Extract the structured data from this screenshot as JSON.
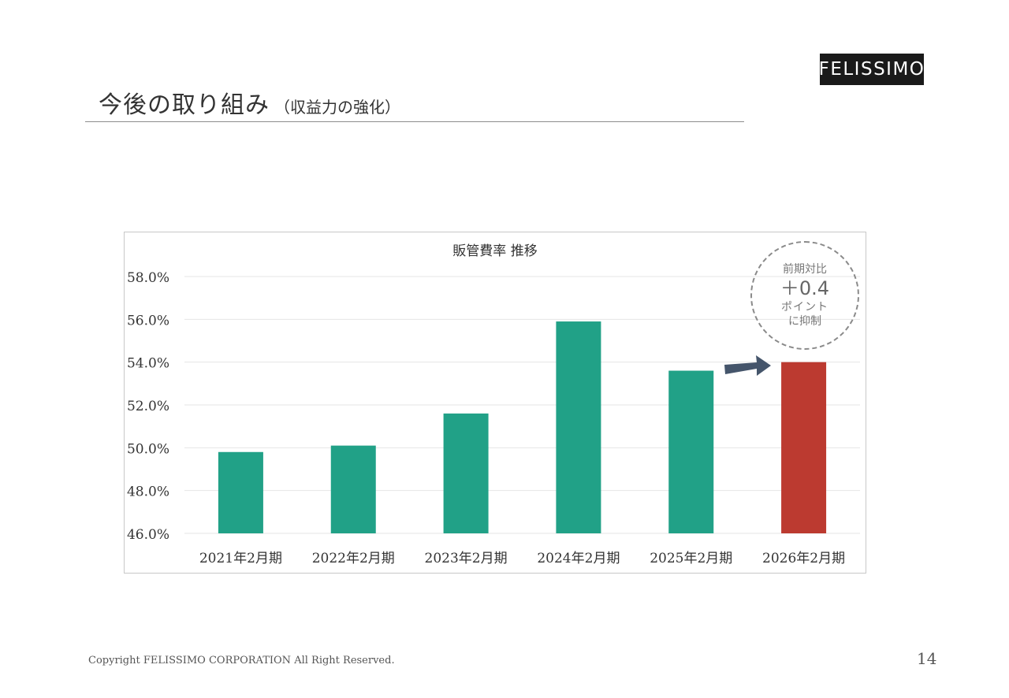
{
  "logo": {
    "text": "FELISSIMO"
  },
  "slide": {
    "title": "今後の取り組み",
    "subtitle": "（収益力の強化）",
    "copyright": "Copyright FELISSIMO CORPORATION All Right Reserved.",
    "page_number": "14"
  },
  "annotation": {
    "line1": "前期対比",
    "line2": "＋0.4",
    "line3": "ポイント",
    "line4": "に抑制"
  },
  "colors": {
    "bar": "#21a187",
    "highlight_bar": "#bc3a30",
    "arrow": "#45556b",
    "grid": "#e6e6e6",
    "text": "#333333"
  },
  "chart_data": {
    "type": "bar",
    "title": "販管費率 推移",
    "categories": [
      "2021年2月期",
      "2022年2月期",
      "2023年2月期",
      "2024年2月期",
      "2025年2月期",
      "2026年2月期"
    ],
    "values": [
      49.8,
      50.1,
      51.6,
      55.9,
      53.6,
      54.0
    ],
    "highlight_index": 5,
    "ylim": [
      46.0,
      58.0
    ],
    "yticks": [
      "46.0%",
      "48.0%",
      "50.0%",
      "52.0%",
      "54.0%",
      "56.0%",
      "58.0%"
    ],
    "ytick_values": [
      46,
      48,
      50,
      52,
      54,
      56,
      58
    ],
    "grid": true,
    "legend": "none"
  }
}
